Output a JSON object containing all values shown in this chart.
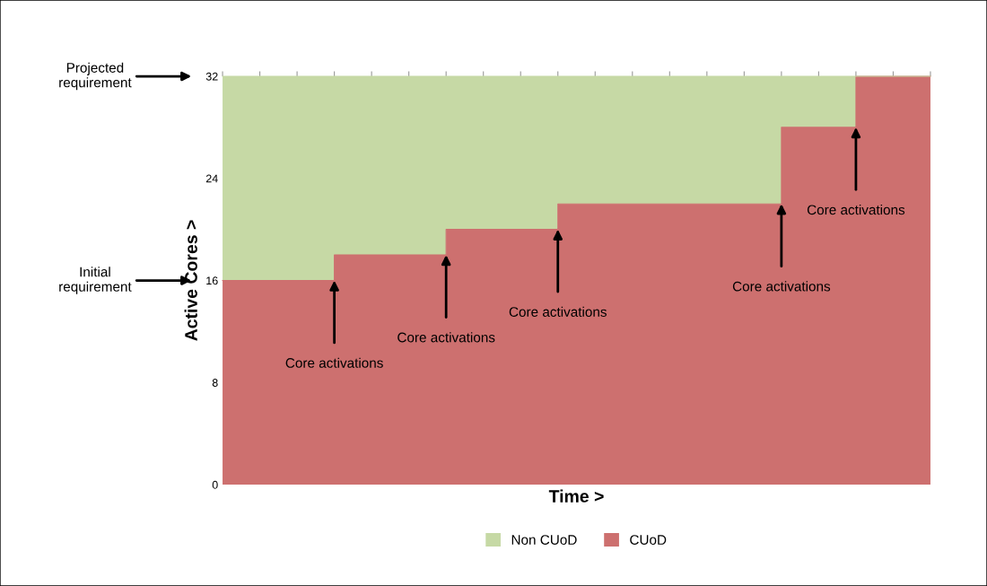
{
  "chart_data": {
    "type": "area",
    "stacked": true,
    "xlabel": "Time >",
    "ylabel": "Active Cores >",
    "categories": [
      null,
      null,
      null,
      null,
      null,
      null,
      null,
      null,
      null,
      null,
      null,
      null,
      null,
      null,
      null,
      null,
      null,
      null,
      null,
      null
    ],
    "series": [
      {
        "name": "CUoD",
        "color": "#cd706f",
        "values": [
          16,
          16,
          16,
          18,
          18,
          18,
          20,
          20,
          20,
          22,
          22,
          22,
          22,
          22,
          22,
          28,
          28,
          32,
          32,
          32
        ]
      },
      {
        "name": "Non CUoD",
        "color": "#c6d9a5",
        "values": [
          16,
          16,
          16,
          14,
          14,
          14,
          12,
          12,
          12,
          10,
          10,
          10,
          10,
          10,
          10,
          4,
          4,
          0,
          0,
          0
        ]
      }
    ],
    "ylim": [
      0,
      32
    ],
    "yticks": [
      0,
      8,
      16,
      24,
      32
    ],
    "grid": false,
    "legend": "bottom",
    "annotations": [
      "Projected\nrequirement",
      "Initial\nrequirement",
      "Core activations",
      "Core activations",
      "Core activations",
      "Core activations",
      "Core activations"
    ]
  }
}
